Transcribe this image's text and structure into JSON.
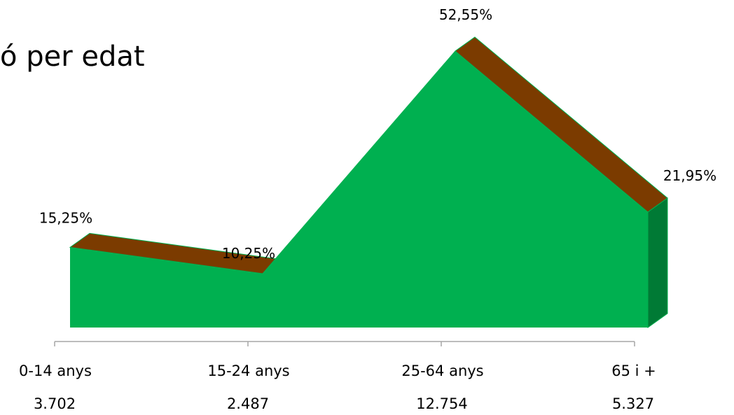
{
  "page": {
    "title_fragment": "ó per edat"
  },
  "chart_data": {
    "type": "area",
    "title": "",
    "categories": [
      "0-14 anys",
      "15-24 anys",
      "25-64 anys",
      "65 i +"
    ],
    "series": [
      {
        "values": [
          15.25,
          10.25,
          52.55,
          21.95
        ]
      }
    ],
    "value_labels": [
      "15,25%",
      "10,25%",
      "52,55%",
      "21,95%"
    ],
    "counts": [
      "3.702",
      "2.487",
      "12.754",
      "5.327"
    ],
    "ylim": [
      0,
      60
    ],
    "grid": false,
    "colors": {
      "front": "#00b050",
      "top": "#7b3b00",
      "side": "#007a35",
      "axis": "#a6a6a6"
    }
  }
}
